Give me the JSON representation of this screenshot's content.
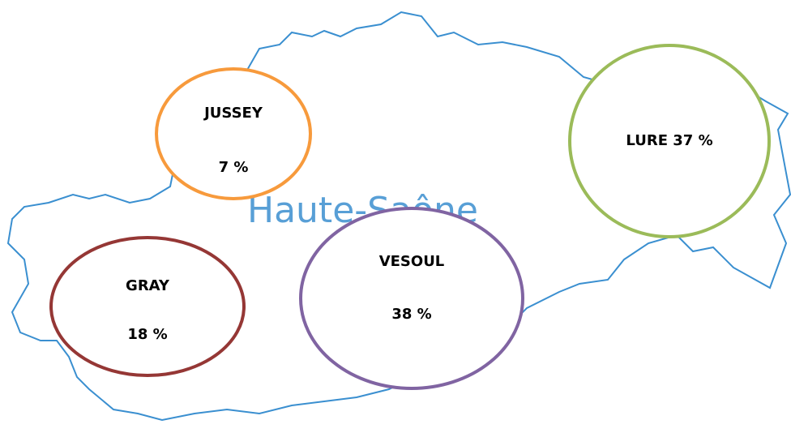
{
  "map_name": "Haute-Saône",
  "regions": [
    {
      "lines": [
        "JUSSEY",
        "7 %"
      ],
      "color": "#f79a3c"
    },
    {
      "lines": [
        "LURE 37 %"
      ],
      "color": "#9bbb59"
    },
    {
      "lines": [
        "GRAY",
        "18 %"
      ],
      "color": "#953735"
    },
    {
      "lines": [
        "VESOUL",
        "38 %"
      ],
      "color": "#8064a2"
    }
  ]
}
